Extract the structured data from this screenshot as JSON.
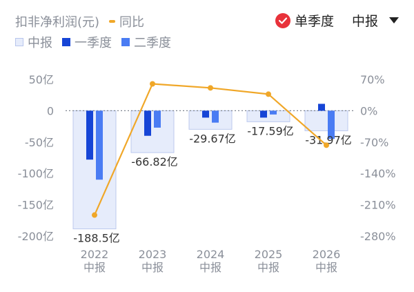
{
  "legend": {
    "row1": [
      {
        "label": "扣非净利润(元)",
        "type": "none",
        "color": ""
      },
      {
        "label": "同比",
        "type": "line",
        "color": "#f0a728"
      }
    ],
    "row2": [
      {
        "label": "中报",
        "type": "box",
        "color": "#e6ecfb"
      },
      {
        "label": "一季度",
        "type": "box",
        "color": "#1645d6"
      },
      {
        "label": "二季度",
        "type": "box",
        "color": "#4a7cf3"
      }
    ]
  },
  "controls": {
    "single_quarter_label": "单季度",
    "period_value": "中报",
    "check_color": "#e8323a"
  },
  "chart_data": {
    "type": "bar",
    "categories": [
      "2022\n中报",
      "2023\n中报",
      "2024\n中报",
      "2025\n中报",
      "2026\n中报"
    ],
    "series": [
      {
        "name": "中报",
        "values": [
          -188.5,
          -66.82,
          -29.67,
          -17.59,
          -31.97
        ],
        "color": "#e6ecfb",
        "value_labels": [
          "-188.5亿",
          "-66.82亿",
          "-29.67亿",
          "-17.59亿",
          "-31.97亿"
        ]
      },
      {
        "name": "一季度",
        "values": [
          -78,
          -40,
          -11,
          -11,
          11
        ],
        "color": "#1645d6"
      },
      {
        "name": "二季度",
        "values": [
          -110,
          -27,
          -19,
          -6,
          -45
        ],
        "color": "#4a7cf3"
      },
      {
        "name": "同比",
        "type": "line",
        "axis": "right",
        "values": [
          -233,
          60,
          51,
          37,
          -77
        ],
        "color": "#f0a728"
      }
    ],
    "ylim": [
      -200,
      50
    ],
    "y_ticks": [
      50,
      0,
      -50,
      -100,
      -150,
      -200
    ],
    "y_tick_labels": [
      "50亿",
      "0",
      "-50亿",
      "-100亿",
      "-150亿",
      "-200亿"
    ],
    "y2lim": [
      -280,
      70
    ],
    "y2_ticks": [
      70,
      0,
      -70,
      -140,
      -210,
      -280
    ],
    "y2_tick_labels": [
      "70%",
      "0%",
      "-70%",
      "-140%",
      "-210%",
      "-280%"
    ]
  }
}
